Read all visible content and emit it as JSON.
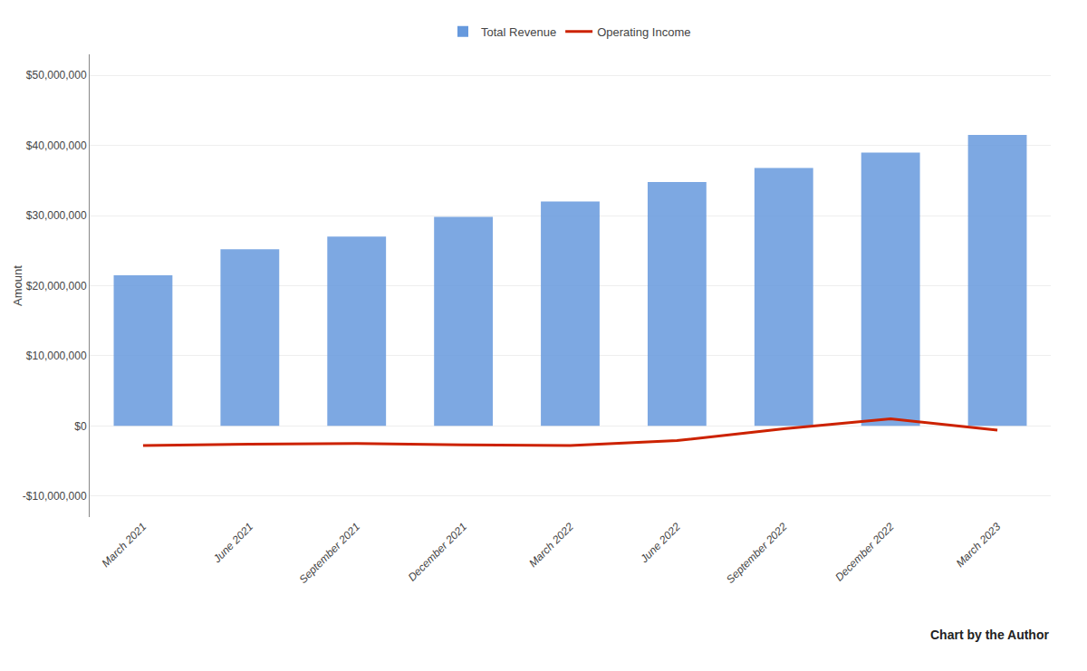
{
  "chart_data": {
    "type": "bar",
    "categories": [
      "March 2021",
      "June 2021",
      "September 2021",
      "December 2021",
      "March 2022",
      "June 2022",
      "September 2022",
      "December 2022",
      "March 2023"
    ],
    "series": [
      {
        "name": "Total Revenue",
        "type": "bar",
        "color": "#6699DD",
        "values": [
          21500000,
          25200000,
          27000000,
          29800000,
          32000000,
          34800000,
          36800000,
          39000000,
          41500000
        ]
      },
      {
        "name": "Operating Income",
        "type": "line",
        "color": "#CC2200",
        "values": [
          -2800000,
          -2600000,
          -2500000,
          -2700000,
          -2800000,
          -2100000,
          -400000,
          1000000,
          -600000
        ]
      }
    ],
    "ylabel": "Amount",
    "ylim": [
      -13000000,
      53000000
    ],
    "yticks": [
      {
        "value": -10000000,
        "label": "-$10,000,000"
      },
      {
        "value": 0,
        "label": "$0"
      },
      {
        "value": 10000000,
        "label": "$10,000,000"
      },
      {
        "value": 20000000,
        "label": "$20,000,000"
      },
      {
        "value": 30000000,
        "label": "$30,000,000"
      },
      {
        "value": 40000000,
        "label": "$40,000,000"
      },
      {
        "value": 50000000,
        "label": "$50,000,000"
      }
    ],
    "grid": true,
    "legend": "upper center",
    "annotation": "Chart by the Author"
  }
}
